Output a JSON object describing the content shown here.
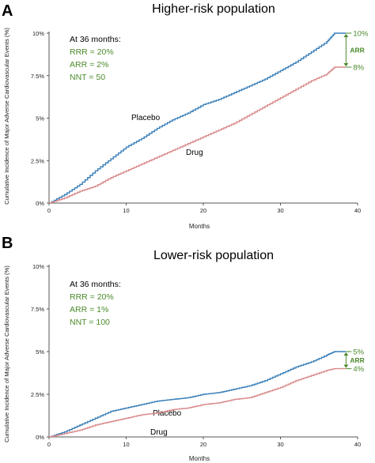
{
  "colors": {
    "placebo": "#3a7fb8",
    "drug": "#d98a8a",
    "annotation": "#4b8a2c",
    "axis": "#555555"
  },
  "chart_data": [
    {
      "type": "line",
      "panel_label": "A",
      "title": "Higher-risk population",
      "xlabel": "Months",
      "ylabel": "Cumulative Incidence of Major Adverse Cardiovascular Events (%)",
      "xlim": [
        0,
        40
      ],
      "ylim": [
        0,
        10
      ],
      "x_ticks": [
        0,
        10,
        20,
        30,
        40
      ],
      "x_tick_labels": [
        "0",
        "10",
        "20",
        "30",
        "40"
      ],
      "y_ticks": [
        0,
        2.5,
        5,
        7.5,
        10
      ],
      "y_tick_labels": [
        "0%",
        "2.5%",
        "5%",
        "7.5%",
        "10%"
      ],
      "grid": false,
      "stats_heading": "At 36 months:",
      "stats": [
        "RRR = 20%",
        "ARR = 2%",
        "NNT = 50"
      ],
      "arr_label": "ARR",
      "end_labels": [
        "10%",
        "8%"
      ],
      "series": [
        {
          "name": "Placebo",
          "color_key": "placebo",
          "x": [
            0,
            2,
            4,
            6,
            8,
            10,
            12,
            14,
            16,
            18,
            20,
            22,
            24,
            26,
            28,
            30,
            32,
            34,
            36,
            37,
            38.5
          ],
          "y": [
            0,
            0.5,
            1.1,
            1.9,
            2.6,
            3.3,
            3.8,
            4.4,
            4.9,
            5.3,
            5.8,
            6.1,
            6.5,
            6.9,
            7.3,
            7.8,
            8.3,
            8.9,
            9.5,
            10.0,
            10.0
          ]
        },
        {
          "name": "Drug",
          "color_key": "drug",
          "x": [
            0,
            2,
            4,
            6,
            8,
            10,
            12,
            14,
            16,
            18,
            20,
            22,
            24,
            26,
            28,
            30,
            32,
            34,
            36,
            37,
            38.5
          ],
          "y": [
            0,
            0.3,
            0.7,
            1.0,
            1.5,
            1.9,
            2.3,
            2.7,
            3.1,
            3.5,
            3.9,
            4.3,
            4.7,
            5.2,
            5.7,
            6.2,
            6.7,
            7.2,
            7.6,
            8.0,
            8.0
          ]
        }
      ]
    },
    {
      "type": "line",
      "panel_label": "B",
      "title": "Lower-risk population",
      "xlabel": "Months",
      "ylabel": "Cumulative Incidence of Major Adverse Cardiovascular Events (%)",
      "xlim": [
        0,
        40
      ],
      "ylim": [
        0,
        10
      ],
      "x_ticks": [
        0,
        10,
        20,
        30,
        40
      ],
      "x_tick_labels": [
        "0",
        "10",
        "20",
        "30",
        "40"
      ],
      "y_ticks": [
        0,
        2.5,
        5,
        7.5,
        10
      ],
      "y_tick_labels": [
        "0%",
        "2.5%",
        "5%",
        "7.5%",
        "10%"
      ],
      "grid": false,
      "stats_heading": "At 36 months:",
      "stats": [
        "RRR = 20%",
        "ARR = 1%",
        "NNT = 100"
      ],
      "arr_label": "ARR",
      "end_labels": [
        "5%",
        "4%"
      ],
      "series": [
        {
          "name": "Placebo",
          "color_key": "placebo",
          "x": [
            0,
            2,
            4,
            6,
            8,
            10,
            12,
            14,
            16,
            18,
            20,
            22,
            24,
            26,
            28,
            30,
            32,
            34,
            36,
            37,
            38.5
          ],
          "y": [
            0,
            0.3,
            0.7,
            1.1,
            1.5,
            1.7,
            1.9,
            2.1,
            2.2,
            2.3,
            2.5,
            2.6,
            2.8,
            3.0,
            3.3,
            3.7,
            4.1,
            4.4,
            4.8,
            5.0,
            5.0
          ]
        },
        {
          "name": "Drug",
          "color_key": "drug",
          "x": [
            0,
            2,
            4,
            6,
            8,
            10,
            12,
            14,
            16,
            18,
            20,
            22,
            24,
            26,
            28,
            30,
            32,
            34,
            36,
            37,
            38.5
          ],
          "y": [
            0,
            0.2,
            0.4,
            0.7,
            0.9,
            1.1,
            1.3,
            1.4,
            1.6,
            1.7,
            1.9,
            2.0,
            2.2,
            2.3,
            2.6,
            2.9,
            3.3,
            3.6,
            3.9,
            4.0,
            4.0
          ]
        }
      ]
    }
  ]
}
